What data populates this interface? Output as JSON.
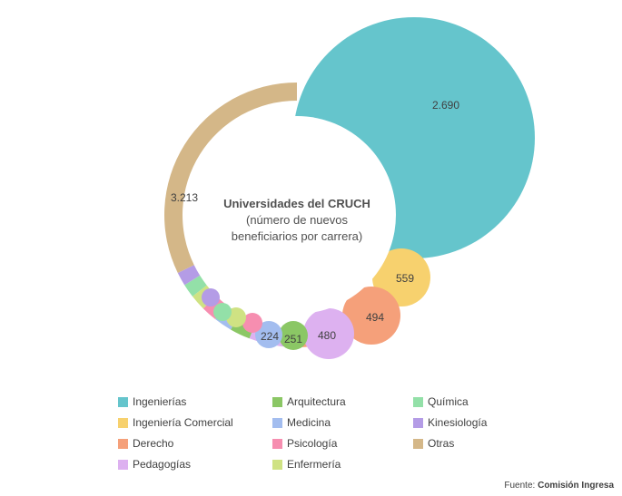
{
  "chart_data": {
    "type": "pie",
    "title": "Universidades del CRUCH",
    "subtitle": [
      "(número de nuevos",
      "beneficiarios por carrera)"
    ],
    "slices": [
      {
        "name": "Ingenierías",
        "value": 2690,
        "label": "2.690",
        "color": "#65C5CC"
      },
      {
        "name": "Ingeniería Comercial",
        "value": 559,
        "label": "559",
        "color": "#F7D16E"
      },
      {
        "name": "Derecho",
        "value": 494,
        "label": "494",
        "color": "#F5A07A"
      },
      {
        "name": "Pedagogías",
        "value": 480,
        "label": "480",
        "color": "#DDB1F0"
      },
      {
        "name": "Arquitectura",
        "value": 251,
        "label": "251",
        "color": "#8BC765"
      },
      {
        "name": "Medicina",
        "value": 224,
        "label": "224",
        "color": "#A3BDEF"
      },
      {
        "name": "Psicología",
        "value": 150,
        "label": "",
        "color": "#F68EB0"
      },
      {
        "name": "Enfermería",
        "value": 140,
        "label": "",
        "color": "#CFE283"
      },
      {
        "name": "Química",
        "value": 130,
        "label": "",
        "color": "#93E0A8"
      },
      {
        "name": "Kinesiología",
        "value": 120,
        "label": "",
        "color": "#B49CE6"
      },
      {
        "name": "Otras",
        "value": 3213,
        "label": "3.213",
        "color": "#D4B788"
      }
    ],
    "legend_position": "bottom",
    "legend_order": [
      "Ingenierías",
      "Arquitectura",
      "Química",
      "Ingeniería Comercial",
      "Medicina",
      "Kinesiología",
      "Derecho",
      "Psicología",
      "Otras",
      "Pedagogías",
      "Enfermería"
    ]
  },
  "source": {
    "prefix": "Fuente: ",
    "name": "Comisión Ingresa"
  }
}
